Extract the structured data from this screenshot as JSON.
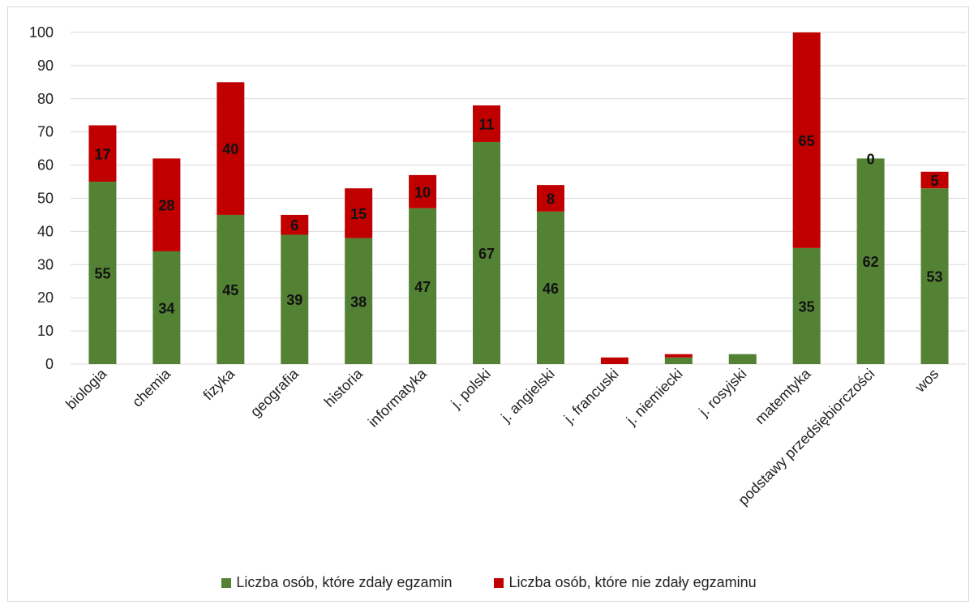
{
  "chart_data": {
    "type": "bar",
    "stacked": true,
    "categories": [
      "biologia",
      "chemia",
      "fizyka",
      "geografia",
      "historia",
      "informatyka",
      "j. polski",
      "j. angielski",
      "j. francuski",
      "j. niemiecki",
      "j. rosyjski",
      "matemtyka",
      "podstawy przedsiębiorczości",
      "wos"
    ],
    "series": [
      {
        "name": "Liczba osób, które zdały egzamin",
        "color": "#548235",
        "values": [
          55,
          34,
          45,
          39,
          38,
          47,
          67,
          46,
          0,
          2,
          3,
          35,
          62,
          53
        ],
        "labels": [
          "55",
          "34",
          "45",
          "39",
          "38",
          "47",
          "67",
          "46",
          "",
          "",
          "",
          "35",
          "62",
          "53"
        ]
      },
      {
        "name": "Liczba osób, które nie zdały egzaminu",
        "color": "#c00000",
        "values": [
          17,
          28,
          40,
          6,
          15,
          10,
          11,
          8,
          2,
          1,
          0,
          65,
          0,
          5
        ],
        "labels": [
          "17",
          "28",
          "40",
          "6",
          "15",
          "10",
          "11",
          "8",
          "",
          "",
          "",
          "65",
          "0",
          "5"
        ]
      }
    ],
    "ylim": [
      0,
      100
    ],
    "yticks": [
      "0",
      "10",
      "20",
      "30",
      "40",
      "50",
      "60",
      "70",
      "80",
      "90",
      "100"
    ],
    "grid": true,
    "legend_position": "bottom"
  }
}
